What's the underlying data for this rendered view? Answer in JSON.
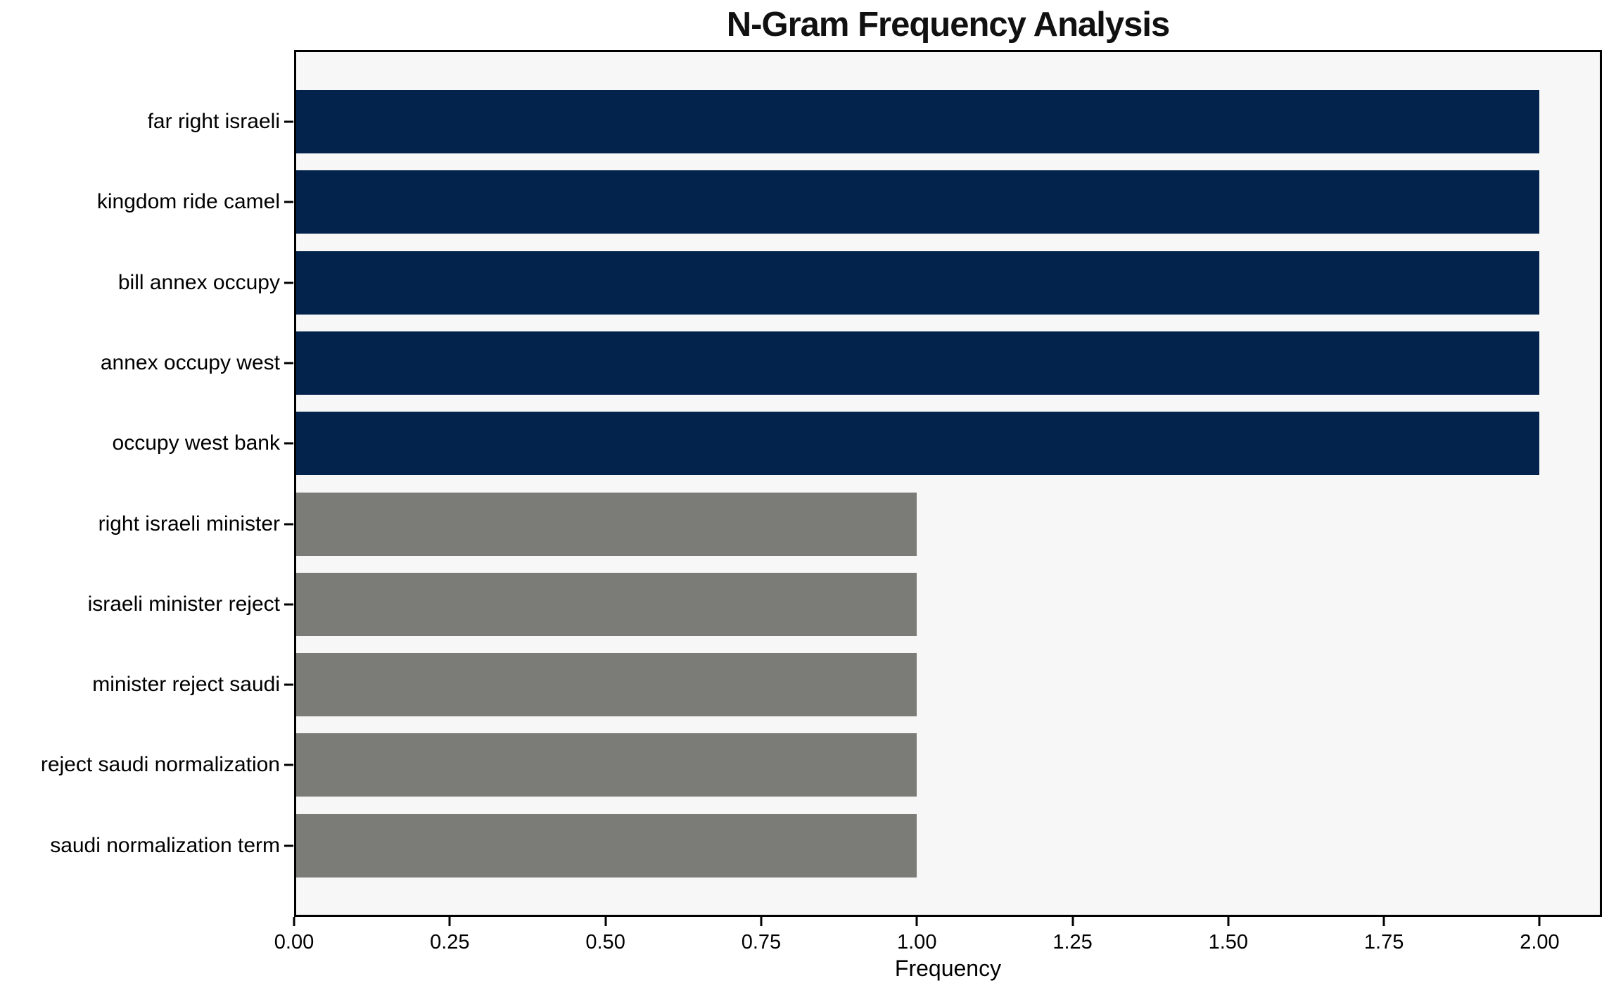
{
  "chart_data": {
    "type": "bar",
    "orientation": "horizontal",
    "title": "N-Gram Frequency Analysis",
    "xlabel": "Frequency",
    "ylabel": "",
    "xlim": [
      0,
      2.1
    ],
    "grid": false,
    "legend": null,
    "categories": [
      "far right israeli",
      "kingdom ride camel",
      "bill annex occupy",
      "annex occupy west",
      "occupy west bank",
      "right israeli minister",
      "israeli minister reject",
      "minister reject saudi",
      "reject saudi normalization",
      "saudi normalization term"
    ],
    "values": [
      2,
      2,
      2,
      2,
      2,
      1,
      1,
      1,
      1,
      1
    ],
    "bar_colors": [
      "#03234d",
      "#03234d",
      "#03234d",
      "#03234d",
      "#03234d",
      "#7b7b77",
      "#7b7b77",
      "#7b7b77",
      "#7b7b77",
      "#7b7b77"
    ],
    "x_ticks": [
      "0.00",
      "0.25",
      "0.50",
      "0.75",
      "1.00",
      "1.25",
      "1.50",
      "1.75",
      "2.00"
    ],
    "x_tick_values": [
      0,
      0.25,
      0.5,
      0.75,
      1.0,
      1.25,
      1.5,
      1.75,
      2.0
    ],
    "colors": {
      "high_freq_bar": "#03234d",
      "low_freq_bar": "#7b7b77",
      "plot_background": "#f7f7f7",
      "figure_background": "#ffffff",
      "spine": "#000000",
      "title_text": "#111111"
    }
  }
}
